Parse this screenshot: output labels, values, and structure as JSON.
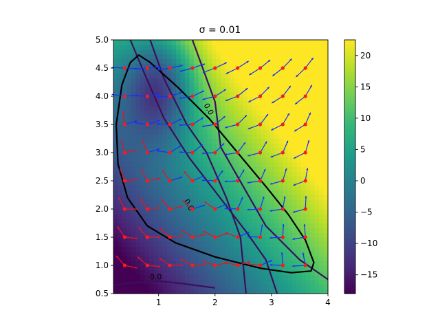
{
  "chart_data": {
    "type": "heatmap",
    "title": "σ = 0.01",
    "xlabel": "",
    "ylabel": "",
    "xlim": [
      0.2,
      4.0
    ],
    "ylim": [
      0.5,
      5.0
    ],
    "x_ticks": [
      "1",
      "2",
      "3",
      "4"
    ],
    "y_ticks": [
      "0.5",
      "1.0",
      "1.5",
      "2.0",
      "2.5",
      "3.0",
      "3.5",
      "4.0",
      "4.5",
      "5.0"
    ],
    "colorbar": {
      "min": -18,
      "max": 22.5,
      "ticks": [
        "20",
        "15",
        "10",
        "5",
        "0",
        "−5",
        "−10",
        "−15"
      ],
      "colormap": "viridis"
    },
    "contour_label": "0.0",
    "contour_label_count": 3,
    "grid_points": {
      "x": [
        0.4,
        0.8,
        1.2,
        1.6,
        2.0,
        2.4,
        2.8,
        3.2,
        3.6
      ],
      "y": [
        1.0,
        1.5,
        2.0,
        2.5,
        3.0,
        3.5,
        4.0,
        4.5
      ]
    },
    "closed_curve": [
      [
        0.5,
        4.6
      ],
      [
        0.35,
        4.2
      ],
      [
        0.25,
        3.5
      ],
      [
        0.28,
        2.8
      ],
      [
        0.45,
        2.2
      ],
      [
        0.8,
        1.7
      ],
      [
        1.3,
        1.4
      ],
      [
        2.0,
        1.15
      ],
      [
        2.8,
        0.95
      ],
      [
        3.35,
        0.87
      ],
      [
        3.7,
        0.9
      ],
      [
        3.75,
        1.05
      ],
      [
        3.6,
        1.45
      ],
      [
        3.3,
        1.9
      ],
      [
        2.9,
        2.4
      ],
      [
        2.4,
        3.0
      ],
      [
        1.9,
        3.6
      ],
      [
        1.35,
        4.15
      ],
      [
        0.85,
        4.6
      ],
      [
        0.65,
        4.73
      ]
    ],
    "zero_contours": [
      [
        [
          0.5,
          5.0
        ],
        [
          0.75,
          4.4
        ],
        [
          1.1,
          3.6
        ],
        [
          1.55,
          2.9
        ],
        [
          2.05,
          2.25
        ],
        [
          2.55,
          1.6
        ],
        [
          2.9,
          1.1
        ],
        [
          3.1,
          0.5
        ]
      ],
      [
        [
          0.85,
          5.0
        ],
        [
          1.1,
          4.3
        ],
        [
          1.5,
          3.5
        ],
        [
          1.85,
          3.0
        ],
        [
          2.2,
          2.2
        ],
        [
          2.45,
          1.5
        ],
        [
          2.5,
          1.0
        ],
        [
          2.55,
          0.5
        ]
      ],
      [
        [
          1.6,
          5.0
        ],
        [
          2.0,
          3.9
        ],
        [
          2.1,
          3.1
        ],
        [
          2.5,
          2.4
        ],
        [
          2.9,
          1.7
        ],
        [
          3.5,
          1.1
        ],
        [
          4.0,
          0.75
        ]
      ],
      [
        [
          0.2,
          0.65
        ],
        [
          0.6,
          0.7
        ],
        [
          1.0,
          0.72
        ],
        [
          1.4,
          0.68
        ],
        [
          2.0,
          0.6
        ]
      ]
    ]
  }
}
